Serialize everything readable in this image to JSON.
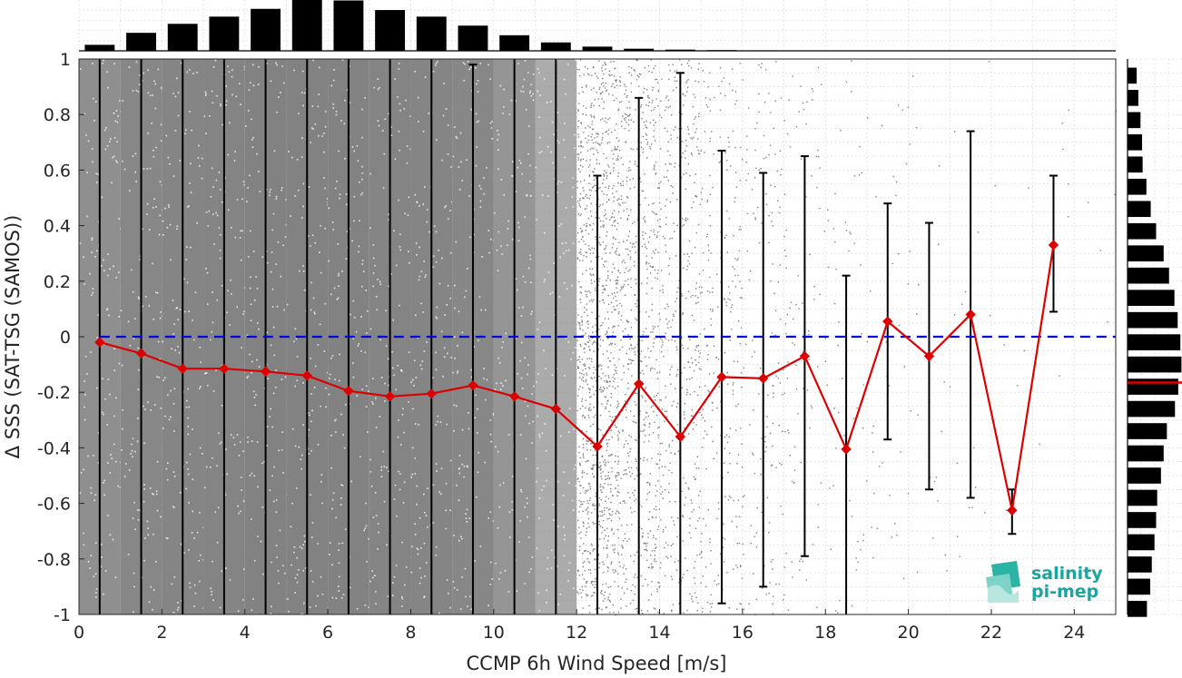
{
  "chart_data": {
    "type": "scatter",
    "title": "",
    "xlabel": "CCMP 6h Wind Speed [m/s]",
    "ylabel": "Δ SSS (SAT-TSG (SAMOS))",
    "xlim": [
      0,
      25
    ],
    "ylim": [
      -1,
      1
    ],
    "x_ticks": [
      0,
      2,
      4,
      6,
      8,
      10,
      12,
      14,
      16,
      18,
      20,
      22,
      24
    ],
    "y_ticks": [
      -1,
      -0.8,
      -0.6,
      -0.4,
      -0.2,
      0,
      0.2,
      0.4,
      0.6,
      0.8,
      1
    ],
    "x_tick_labels": [
      "0",
      "2",
      "4",
      "6",
      "8",
      "10",
      "12",
      "14",
      "16",
      "18",
      "20",
      "22",
      "24"
    ],
    "y_tick_labels": [
      "-1",
      "-0.8",
      "-0.6",
      "-0.4",
      "-0.2",
      "0",
      "0.2",
      "0.4",
      "0.6",
      "0.8",
      "1"
    ],
    "grid": true,
    "zero_line": {
      "y": 0,
      "color": "#0000dd",
      "style": "dashed"
    },
    "series": [
      {
        "type": "line",
        "color": "#dd0000",
        "marker": "diamond",
        "x": [
          0.5,
          1.5,
          2.5,
          3.5,
          4.5,
          5.5,
          6.5,
          7.5,
          8.5,
          9.5,
          10.5,
          11.5,
          12.5,
          13.5,
          14.5,
          15.5,
          16.5,
          17.5,
          18.5,
          19.5,
          20.5,
          21.5,
          22.5,
          23.5
        ],
        "y": [
          -0.02,
          -0.06,
          -0.115,
          -0.115,
          -0.125,
          -0.14,
          -0.195,
          -0.215,
          -0.205,
          -0.175,
          -0.215,
          -0.26,
          -0.395,
          -0.17,
          -0.36,
          -0.145,
          -0.15,
          -0.07,
          -0.405,
          0.055,
          -0.07,
          0.08,
          -0.625,
          0.33
        ]
      }
    ],
    "error_bars": {
      "color": "#000000",
      "x": [
        0.5,
        1.5,
        2.5,
        3.5,
        4.5,
        5.5,
        6.5,
        7.5,
        8.5,
        9.5,
        10.5,
        11.5,
        12.5,
        13.5,
        14.5,
        15.5,
        16.5,
        17.5,
        18.5,
        19.5,
        20.5,
        21.5,
        22.5,
        23.5
      ],
      "upper": [
        1,
        1,
        1,
        1,
        1,
        1,
        1,
        1,
        1,
        0.98,
        1,
        1,
        0.58,
        0.86,
        0.95,
        0.67,
        0.59,
        0.65,
        0.22,
        0.48,
        0.41,
        0.74,
        -0.55,
        0.58
      ],
      "lower": [
        -1,
        -1,
        -1,
        -1,
        -1,
        -1,
        -1,
        -1,
        -1,
        -1,
        -1,
        -1,
        -1,
        -1,
        -1,
        -0.96,
        -0.9,
        -0.79,
        -1,
        -0.37,
        -0.55,
        -0.58,
        -0.71,
        0.09
      ]
    },
    "scatter_color": "#808080",
    "top_histogram": {
      "x": [
        0.5,
        1.5,
        2.5,
        3.5,
        4.5,
        5.5,
        6.5,
        7.5,
        8.5,
        9.5,
        10.5,
        11.5,
        12.5,
        13.5,
        14.5,
        15.5,
        16.5,
        17.5
      ],
      "counts": [
        0.1,
        0.3,
        0.45,
        0.57,
        0.7,
        0.85,
        0.84,
        0.68,
        0.57,
        0.42,
        0.26,
        0.14,
        0.07,
        0.035,
        0.02,
        0.012,
        0.008,
        0.004
      ]
    },
    "right_histogram": {
      "y": [
        -0.98,
        -0.94,
        -0.9,
        -0.86,
        -0.82,
        -0.78,
        -0.74,
        -0.7,
        -0.66,
        -0.62,
        -0.58,
        -0.54,
        -0.5,
        -0.46,
        -0.42,
        -0.38,
        -0.34,
        -0.3,
        -0.26,
        -0.22,
        -0.18,
        -0.14,
        -0.1,
        -0.06,
        -0.02,
        0.02,
        0.06,
        0.1,
        0.14,
        0.18,
        0.22,
        0.26,
        0.3,
        0.34,
        0.38,
        0.42,
        0.46,
        0.5,
        0.54,
        0.58,
        0.62,
        0.66,
        0.7,
        0.74,
        0.78,
        0.82,
        0.86,
        0.9,
        0.94,
        0.98
      ],
      "counts": [
        0.36,
        0,
        0.42,
        0,
        0.45,
        0,
        0.5,
        0,
        0.53,
        0,
        0.55,
        0,
        0.62,
        0,
        0.67,
        0,
        0.73,
        0,
        0.88,
        0,
        0.94,
        0,
        1.0,
        0,
        0.98,
        0,
        0.93,
        0,
        0.87,
        0,
        0.77,
        0,
        0.67,
        0,
        0.53,
        0,
        0.43,
        0,
        0.35,
        0,
        0.28,
        0,
        0.27,
        0,
        0.24,
        0,
        0.2,
        0,
        0.17,
        0
      ],
      "mean_line": -0.165,
      "mean_color": "#dd0000"
    }
  },
  "logo": {
    "line1": "salinity",
    "line2": "pi-mep"
  }
}
